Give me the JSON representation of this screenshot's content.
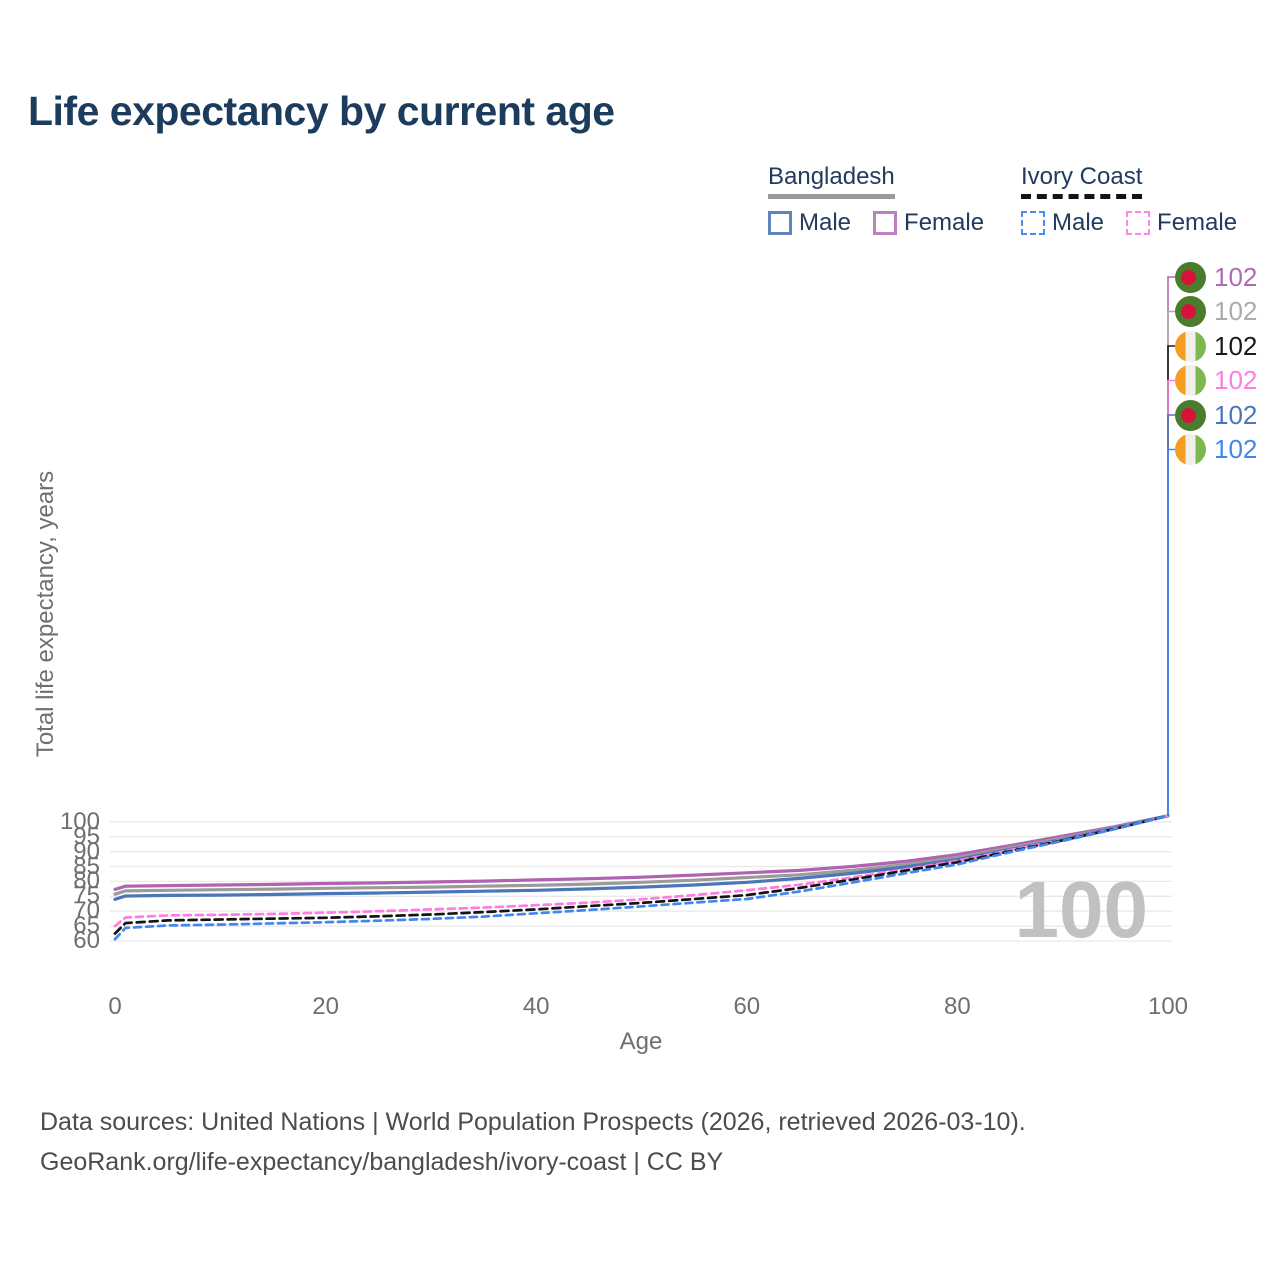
{
  "title": "Life expectancy by current age",
  "legend": {
    "groups": [
      {
        "label": "Bangladesh",
        "line_style": "solid",
        "underline_color": "#999999",
        "items": [
          {
            "label": "Male",
            "color": "#4B76B8"
          },
          {
            "label": "Female",
            "color": "#AF63B0"
          }
        ]
      },
      {
        "label": "Ivory Coast",
        "line_style": "dashed",
        "underline_color": "#141414",
        "items": [
          {
            "label": "Male",
            "color": "#4187F2"
          },
          {
            "label": "Female",
            "color": "#FF7CE0"
          }
        ]
      }
    ]
  },
  "chart_data": {
    "type": "line",
    "title": "Life expectancy by current age",
    "xlabel": "Age",
    "ylabel": "Total life expectancy, years",
    "xlim": [
      0,
      100
    ],
    "ylim": [
      58,
      103
    ],
    "x_ticks": [
      0,
      20,
      40,
      60,
      80,
      100
    ],
    "y_ticks": [
      60,
      65,
      70,
      75,
      80,
      85,
      90,
      95,
      100
    ],
    "grid": "horizontal",
    "legend_position": "top-right",
    "x": [
      0,
      1,
      5,
      10,
      15,
      20,
      25,
      30,
      35,
      40,
      45,
      50,
      55,
      60,
      65,
      70,
      75,
      80,
      85,
      90,
      95,
      100
    ],
    "series": [
      {
        "name": "Bangladesh Female",
        "country": "Bangladesh",
        "sex": "female",
        "color": "#AF63B0",
        "dash": null,
        "width": 3.2,
        "values": [
          77.3,
          78.4,
          78.6,
          78.8,
          79.0,
          79.3,
          79.5,
          79.8,
          80.1,
          80.5,
          80.9,
          81.4,
          82.1,
          82.9,
          83.7,
          85.0,
          86.7,
          89.0,
          92.0,
          95.2,
          98.4,
          102
        ]
      },
      {
        "name": "Bangladesh",
        "country": "Bangladesh",
        "sex": "both",
        "color": "#9B9B9B",
        "dash": null,
        "width": 3.2,
        "values": [
          75.7,
          76.8,
          77.0,
          77.2,
          77.4,
          77.7,
          77.9,
          78.1,
          78.4,
          78.7,
          79.1,
          79.7,
          80.4,
          81.3,
          82.2,
          83.7,
          85.6,
          88.1,
          91.3,
          94.6,
          98.1,
          102
        ]
      },
      {
        "name": "Bangladesh Male",
        "country": "Bangladesh",
        "sex": "male",
        "color": "#4B76B8",
        "dash": null,
        "width": 3.2,
        "values": [
          74.0,
          75.1,
          75.3,
          75.4,
          75.6,
          75.9,
          76.1,
          76.4,
          76.7,
          77.0,
          77.5,
          78.1,
          78.8,
          79.7,
          81.0,
          82.7,
          84.8,
          87.3,
          90.7,
          94.1,
          97.9,
          102
        ]
      },
      {
        "name": "Ivory Coast Female",
        "country": "Ivory Coast",
        "sex": "female",
        "color": "#FF7CE0",
        "dash": "7 5",
        "width": 2.7,
        "values": [
          65.0,
          67.9,
          68.6,
          68.8,
          69.1,
          69.5,
          70.0,
          70.6,
          71.2,
          72.0,
          72.9,
          74.0,
          75.4,
          77.0,
          78.9,
          81.3,
          84.0,
          86.9,
          90.5,
          94.0,
          97.8,
          102
        ]
      },
      {
        "name": "Ivory Coast",
        "country": "Ivory Coast",
        "sex": "both",
        "color": "#141414",
        "dash": "8 5",
        "width": 2.7,
        "values": [
          62.5,
          66.0,
          66.9,
          67.2,
          67.5,
          67.8,
          68.3,
          68.9,
          69.7,
          70.6,
          71.7,
          72.8,
          74.1,
          75.4,
          77.8,
          80.6,
          83.6,
          86.4,
          90.1,
          93.8,
          97.7,
          102
        ]
      },
      {
        "name": "Ivory Coast Male",
        "country": "Ivory Coast",
        "sex": "male",
        "color": "#4187F2",
        "dash": "7 5",
        "width": 2.7,
        "values": [
          60.6,
          64.4,
          65.2,
          65.5,
          65.9,
          66.3,
          66.8,
          67.4,
          68.2,
          69.3,
          70.4,
          71.6,
          72.9,
          74.1,
          76.6,
          79.6,
          82.7,
          85.7,
          89.8,
          93.6,
          97.6,
          102
        ]
      }
    ]
  },
  "end_labels": [
    {
      "value": "102",
      "flag": "bangladesh",
      "color": "#B06AB2",
      "series": "Bangladesh Female"
    },
    {
      "value": "102",
      "flag": "bangladesh",
      "color": "#ABABAB",
      "series": "Bangladesh"
    },
    {
      "value": "102",
      "flag": "ivory-coast",
      "color": "#1A1A1A",
      "series": "Ivory Coast"
    },
    {
      "value": "102",
      "flag": "ivory-coast",
      "color": "#FF7CE0",
      "series": "Ivory Coast Female"
    },
    {
      "value": "102",
      "flag": "bangladesh",
      "color": "#4B76B8",
      "series": "Bangladesh Male"
    },
    {
      "value": "102",
      "flag": "ivory-coast",
      "color": "#4187F2",
      "series": "Ivory Coast Male"
    }
  ],
  "watermark": "100",
  "footer": {
    "line1": "Data sources: United Nations | World Population Prospects (2026, retrieved 2026-03-10).",
    "line2": "GeoRank.org/life-expectancy/bangladesh/ivory-coast | CC BY"
  }
}
